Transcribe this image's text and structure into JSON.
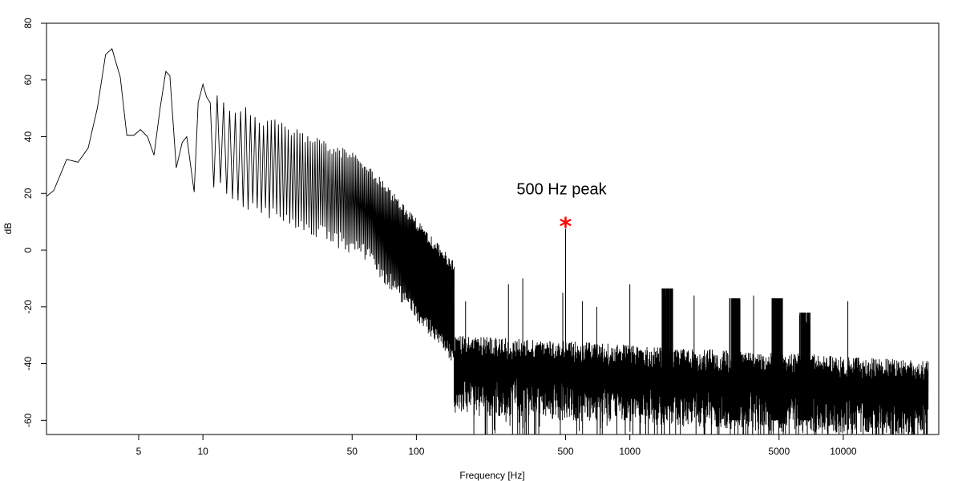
{
  "chart_data": {
    "type": "line",
    "title": "",
    "xlabel": "Frequency [Hz]",
    "ylabel": "dB",
    "x_scale": "log",
    "xlim": [
      1.85,
      28000
    ],
    "ylim": [
      -65,
      80
    ],
    "x_ticks": [
      5,
      10,
      50,
      100,
      500,
      1000,
      5000,
      10000
    ],
    "x_tick_labels": [
      "5",
      "10",
      "50",
      "100",
      "500",
      "1000",
      "5000",
      "10000"
    ],
    "y_ticks": [
      -60,
      -40,
      -20,
      0,
      20,
      40,
      60,
      80
    ],
    "y_tick_labels": [
      "-60",
      "-40",
      "-20",
      "0",
      "20",
      "40",
      "60",
      "80"
    ],
    "grid": false,
    "line_color": "#000000",
    "series": [
      {
        "x": [
          1.85,
          2.0,
          2.3,
          2.6,
          2.9,
          3.2,
          3.5,
          3.75,
          4.1,
          4.4,
          4.75,
          5.1,
          5.5,
          5.9,
          6.3,
          6.7,
          7.0,
          7.5,
          8.0,
          8.4,
          9.1,
          9.5,
          10.0,
          10.4
        ],
        "y": [
          19,
          21,
          32,
          31,
          36,
          50,
          69,
          71,
          61,
          40.5,
          40.5,
          42.5,
          40,
          33.5,
          50,
          63,
          61.5,
          29,
          38,
          40,
          20.5,
          52,
          58.5,
          54
        ]
      }
    ],
    "spikes": [
      {
        "x": 170,
        "y": -18
      },
      {
        "x": 270,
        "y": -12
      },
      {
        "x": 315,
        "y": -10
      },
      {
        "x": 485,
        "y": -15
      },
      {
        "x": 500,
        "y": 7.5
      },
      {
        "x": 600,
        "y": -18
      },
      {
        "x": 700,
        "y": -20
      },
      {
        "x": 1000,
        "y": -12
      },
      {
        "x": 1480,
        "y": -13.5
      },
      {
        "x": 2000,
        "y": -16
      },
      {
        "x": 3800,
        "y": -16
      },
      {
        "x": 4800,
        "y": -17
      },
      {
        "x": 10500,
        "y": -18
      }
    ],
    "clusters": [
      {
        "x": 1500,
        "top": -13.5,
        "low": -55
      },
      {
        "x": 3100,
        "top": -17,
        "low": -60
      },
      {
        "x": 4900,
        "top": -17,
        "low": -60
      },
      {
        "x": 6600,
        "top": -22,
        "low": -60
      }
    ],
    "peak_marker": {
      "x": 500,
      "y": 9,
      "symbol": "*",
      "color": "#ff0000"
    },
    "annotations": [
      {
        "text": "500 Hz peak",
        "x": 500,
        "y": 20
      }
    ]
  }
}
